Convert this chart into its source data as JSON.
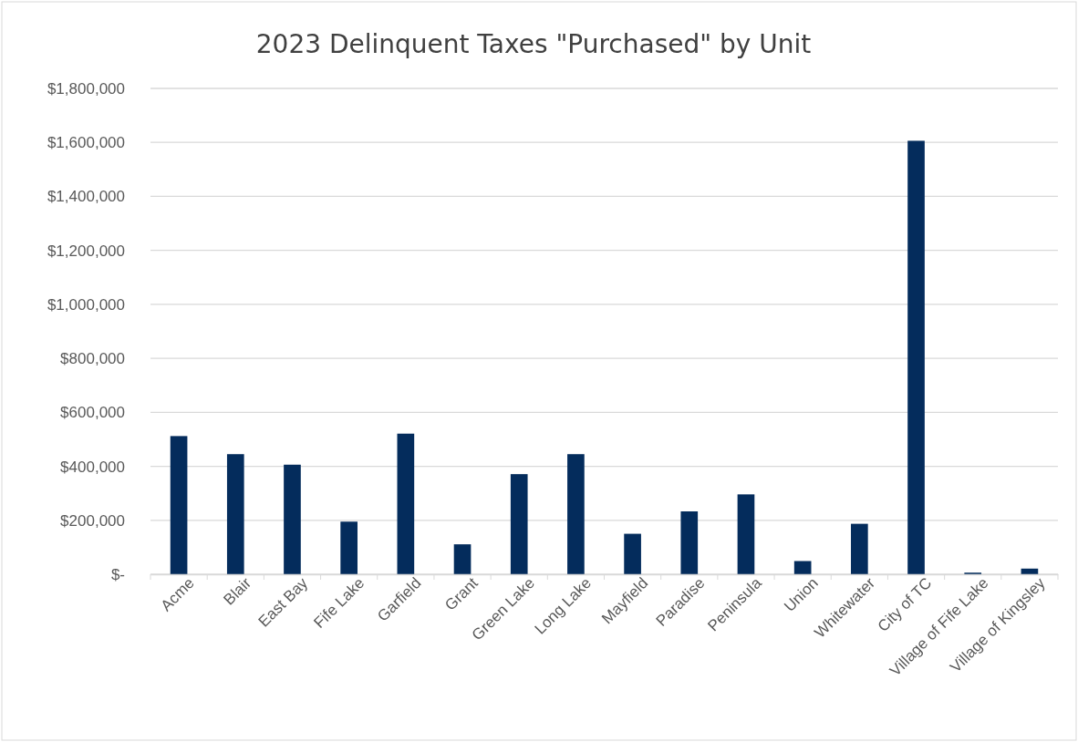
{
  "chart_data": {
    "type": "bar",
    "title": "2023 Delinquent Taxes \"Purchased\" by  Unit",
    "categories": [
      "Acme",
      "Blair",
      "East Bay",
      "Fife Lake",
      "Garfield",
      "Grant",
      "Green Lake",
      "Long Lake",
      "Mayfield",
      "Paradise",
      "Peninsula",
      "Union",
      "Whitewater",
      "City of TC",
      "Village of Fife Lake",
      "Village of Kingsley"
    ],
    "values": [
      512000,
      445000,
      406000,
      195000,
      521000,
      111000,
      371000,
      445000,
      150000,
      233000,
      296000,
      49000,
      187000,
      1606000,
      6000,
      21000
    ],
    "color": "#042c5c",
    "ylim": [
      0,
      1800000
    ],
    "yticks": [
      {
        "value": 0,
        "label": "$-"
      },
      {
        "value": 200000,
        "label": "$200,000"
      },
      {
        "value": 400000,
        "label": "$400,000"
      },
      {
        "value": 600000,
        "label": "$600,000"
      },
      {
        "value": 800000,
        "label": "$800,000"
      },
      {
        "value": 1000000,
        "label": "$1,000,000"
      },
      {
        "value": 1200000,
        "label": "$1,200,000"
      },
      {
        "value": 1400000,
        "label": "$1,400,000"
      },
      {
        "value": 1600000,
        "label": "$1,600,000"
      },
      {
        "value": 1800000,
        "label": "$1,800,000"
      }
    ],
    "grid": "y"
  }
}
